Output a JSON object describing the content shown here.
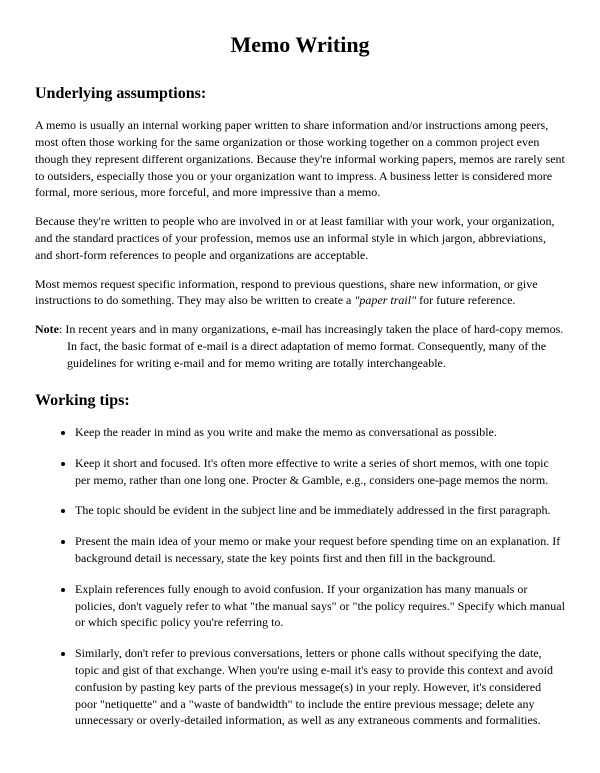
{
  "title": "Memo Writing",
  "section1": {
    "heading": "Underlying assumptions:",
    "para1": "A memo is usually an internal working paper written to share information and/or instructions among peers, most often those working for the same organization or those working together on a common project even though they represent different organizations. Because they're informal working papers, memos are rarely sent to outsiders, especially those you or your organization want to impress. A business letter is considered more formal, more serious, more forceful, and more impressive than a memo.",
    "para2": "Because they're written to people who are involved in or at least familiar with your work, your organization, and the standard practices of your profession, memos use an informal style in which jargon, abbreviations, and short-form references to people and organizations are acceptable.",
    "para3_before": "Most memos request specific information, respond to previous questions, share new information, or give instructions to do something. They may also be written to create a ",
    "para3_italic": "\"paper trail\"",
    "para3_after": " for future reference.",
    "note_label": "Note",
    "note_text": ": In recent years and in many organizations, e-mail has increasingly taken the place of hard-copy memos. In fact, the basic format of e-mail is a direct adaptation of memo format. Consequently, many of the guidelines for writing e-mail and for memo writing are totally interchangeable."
  },
  "section2": {
    "heading": "Working tips:",
    "tips": [
      "Keep the reader in mind as you write and make the memo as conversational as possible.",
      "Keep it short and focused. It's often more effective to write a series of short memos, with one topic per memo, rather than one long one. Procter & Gamble, e.g., considers one-page memos the norm.",
      "The topic should be evident in the subject line and be immediately addressed in the first paragraph.",
      "Present the main idea of your memo or make your request before spending time on an explanation. If background detail is necessary, state the key points first and then fill in the background.",
      "Explain references fully enough to avoid confusion. If your organization has many manuals or policies, don't vaguely refer to what \"the manual says\" or \"the policy requires.\" Specify which manual or which specific policy you're referring to.",
      "Similarly, don't refer to previous conversations, letters or phone calls without specifying the date, topic and gist of that exchange. When you're using e-mail it's easy to provide this context and avoid confusion by pasting key parts of the previous message(s) in your reply. However, it's considered poor \"netiquette\" and a \"waste of bandwidth\" to include the entire previous message; delete any unnecessary or overly-detailed information, as well as any extraneous comments and formalities."
    ]
  }
}
